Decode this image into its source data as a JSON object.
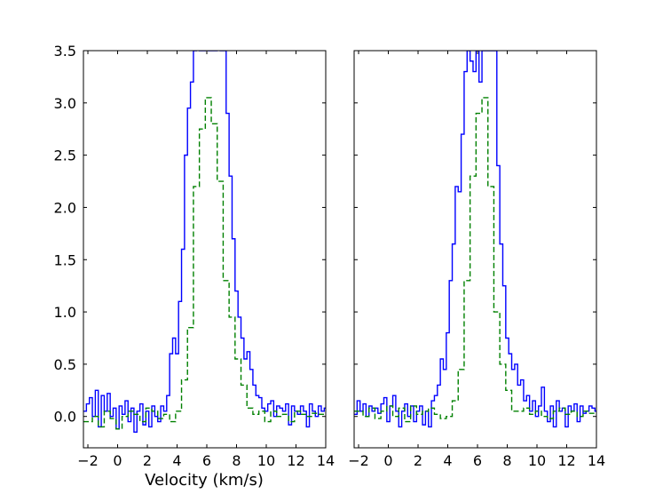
{
  "chart_data": [
    {
      "type": "line",
      "panel": "left",
      "title": "",
      "xlabel": "Velocity (km/s)",
      "ylabel": "",
      "xlim": [
        -2.3,
        14
      ],
      "ylim": [
        -0.3,
        3.5
      ],
      "xticks": [
        -2,
        0,
        2,
        4,
        6,
        8,
        10,
        12,
        14
      ],
      "yticks": [
        0.0,
        0.5,
        1.0,
        1.5,
        2.0,
        2.5,
        3.0,
        3.5
      ],
      "ytick_labels": [
        "0.0",
        "0.5",
        "1.0",
        "1.5",
        "2.0",
        "2.5",
        "3.0",
        "3.5"
      ],
      "drawstyle": "steps",
      "series": [
        {
          "color": "#0000ff",
          "linestyle": "solid",
          "x": [
            -2.3,
            -2.1,
            -1.9,
            -1.7,
            -1.5,
            -1.3,
            -1.1,
            -0.9,
            -0.7,
            -0.5,
            -0.3,
            -0.1,
            0.1,
            0.3,
            0.5,
            0.7,
            0.9,
            1.1,
            1.3,
            1.5,
            1.7,
            1.9,
            2.1,
            2.3,
            2.5,
            2.7,
            2.9,
            3.1,
            3.3,
            3.5,
            3.7,
            3.9,
            4.1,
            4.3,
            4.5,
            4.7,
            4.9,
            5.1,
            5.3,
            5.5,
            5.7,
            5.9,
            6.1,
            6.3,
            6.5,
            6.7,
            6.9,
            7.1,
            7.3,
            7.5,
            7.7,
            7.9,
            8.1,
            8.3,
            8.5,
            8.7,
            8.9,
            9.1,
            9.3,
            9.5,
            9.7,
            9.9,
            10.1,
            10.3,
            10.5,
            10.7,
            10.9,
            11.1,
            11.3,
            11.5,
            11.7,
            11.9,
            12.1,
            12.3,
            12.5,
            12.7,
            12.9,
            13.1,
            13.3,
            13.5,
            13.7,
            13.9
          ],
          "y": [
            0.05,
            0.12,
            0.18,
            0.0,
            0.25,
            -0.1,
            0.2,
            0.05,
            0.22,
            0.0,
            0.08,
            -0.12,
            0.1,
            0.02,
            0.15,
            -0.05,
            0.08,
            -0.15,
            0.05,
            0.12,
            -0.08,
            0.05,
            -0.1,
            0.1,
            0.0,
            -0.05,
            0.1,
            0.05,
            0.2,
            0.6,
            0.75,
            0.6,
            1.1,
            1.6,
            2.5,
            2.95,
            3.2,
            3.5,
            3.6,
            3.5,
            3.5,
            3.6,
            3.5,
            3.5,
            3.5,
            3.6,
            3.5,
            3.5,
            2.9,
            2.3,
            1.7,
            1.2,
            0.95,
            0.75,
            0.55,
            0.62,
            0.45,
            0.3,
            0.2,
            0.18,
            0.08,
            0.05,
            0.12,
            0.15,
            0.0,
            0.1,
            0.08,
            0.05,
            0.12,
            -0.08,
            0.1,
            0.05,
            0.02,
            0.1,
            0.05,
            -0.1,
            0.12,
            0.05,
            0.0,
            0.1,
            0.05,
            0.08
          ]
        },
        {
          "color": "#008000",
          "linestyle": "dashed",
          "x": [
            -2.3,
            -1.7,
            -1.3,
            -0.9,
            -0.5,
            -0.1,
            0.3,
            0.7,
            1.1,
            1.5,
            1.9,
            2.3,
            2.7,
            3.1,
            3.5,
            3.9,
            4.3,
            4.7,
            5.1,
            5.5,
            5.9,
            6.3,
            6.7,
            7.1,
            7.5,
            7.9,
            8.3,
            8.7,
            9.1,
            9.5,
            9.9,
            10.3,
            10.7,
            11.1,
            11.5,
            11.9,
            12.3,
            12.7,
            13.1,
            13.5
          ],
          "y": [
            -0.05,
            0.0,
            -0.1,
            0.05,
            -0.02,
            -0.12,
            0.0,
            0.05,
            0.02,
            -0.05,
            0.08,
            0.05,
            -0.02,
            0.02,
            -0.05,
            0.05,
            0.35,
            0.85,
            2.2,
            2.75,
            3.05,
            2.8,
            2.25,
            1.3,
            0.95,
            0.55,
            0.3,
            0.08,
            0.02,
            0.05,
            -0.05,
            0.05,
            0.0,
            0.02,
            -0.05,
            0.05,
            0.02,
            0.0,
            0.03,
            0.02
          ]
        }
      ]
    },
    {
      "type": "line",
      "panel": "right",
      "title": "",
      "xlabel": "",
      "ylabel": "",
      "xlim": [
        -2.3,
        14
      ],
      "ylim": [
        -0.3,
        3.5
      ],
      "xticks": [
        -2,
        0,
        2,
        4,
        6,
        8,
        10,
        12,
        14
      ],
      "yticks": [
        0.0,
        0.5,
        1.0,
        1.5,
        2.0,
        2.5,
        3.0,
        3.5
      ],
      "drawstyle": "steps",
      "series": [
        {
          "color": "#0000ff",
          "linestyle": "solid",
          "x": [
            -2.3,
            -2.1,
            -1.9,
            -1.7,
            -1.5,
            -1.3,
            -1.1,
            -0.9,
            -0.7,
            -0.5,
            -0.3,
            -0.1,
            0.1,
            0.3,
            0.5,
            0.7,
            0.9,
            1.1,
            1.3,
            1.5,
            1.7,
            1.9,
            2.1,
            2.3,
            2.5,
            2.7,
            2.9,
            3.1,
            3.3,
            3.5,
            3.7,
            3.9,
            4.1,
            4.3,
            4.5,
            4.7,
            4.9,
            5.1,
            5.3,
            5.5,
            5.7,
            5.9,
            6.1,
            6.3,
            6.5,
            6.7,
            6.9,
            7.1,
            7.3,
            7.5,
            7.7,
            7.9,
            8.1,
            8.3,
            8.5,
            8.7,
            8.9,
            9.1,
            9.3,
            9.5,
            9.7,
            9.9,
            10.1,
            10.3,
            10.5,
            10.7,
            10.9,
            11.1,
            11.3,
            11.5,
            11.7,
            11.9,
            12.1,
            12.3,
            12.5,
            12.7,
            12.9,
            13.1,
            13.3,
            13.5,
            13.7,
            13.9
          ],
          "y": [
            0.02,
            0.15,
            0.05,
            0.12,
            0.0,
            0.1,
            0.05,
            0.08,
            0.03,
            0.12,
            0.18,
            -0.05,
            0.1,
            0.2,
            0.05,
            -0.1,
            0.05,
            0.12,
            0.0,
            0.1,
            -0.05,
            0.05,
            0.1,
            -0.08,
            0.05,
            -0.1,
            0.15,
            0.2,
            0.3,
            0.55,
            0.45,
            0.8,
            1.3,
            1.65,
            2.2,
            2.15,
            2.7,
            3.3,
            3.5,
            3.4,
            3.3,
            3.5,
            3.2,
            3.5,
            3.5,
            3.5,
            3.5,
            3.5,
            2.4,
            1.65,
            1.25,
            0.75,
            0.6,
            0.45,
            0.5,
            0.3,
            0.35,
            0.15,
            0.2,
            0.05,
            0.15,
            0.0,
            0.1,
            0.28,
            0.05,
            -0.05,
            0.1,
            -0.1,
            0.15,
            0.05,
            0.08,
            -0.1,
            0.1,
            0.05,
            0.12,
            -0.05,
            0.1,
            0.03,
            0.05,
            0.1,
            0.08,
            0.05
          ]
        },
        {
          "color": "#008000",
          "linestyle": "dashed",
          "x": [
            -2.3,
            -1.7,
            -1.3,
            -0.9,
            -0.5,
            -0.1,
            0.3,
            0.7,
            1.1,
            1.5,
            1.9,
            2.3,
            2.7,
            3.1,
            3.5,
            3.9,
            4.3,
            4.7,
            5.1,
            5.5,
            5.9,
            6.3,
            6.7,
            7.1,
            7.5,
            7.9,
            8.3,
            8.7,
            9.1,
            9.5,
            9.9,
            10.3,
            10.7,
            11.1,
            11.5,
            11.9,
            12.3,
            12.7,
            13.1,
            13.5
          ],
          "y": [
            0.05,
            0.0,
            0.08,
            -0.02,
            0.05,
            0.1,
            0.0,
            0.08,
            -0.05,
            0.1,
            0.02,
            0.05,
            0.08,
            0.02,
            -0.02,
            0.0,
            0.15,
            0.45,
            1.3,
            2.3,
            2.9,
            3.05,
            2.2,
            1.0,
            0.5,
            0.25,
            0.05,
            0.05,
            0.08,
            0.02,
            0.05,
            0.0,
            -0.02,
            0.05,
            0.08,
            0.02,
            0.05,
            0.0,
            0.05,
            0.03
          ]
        }
      ]
    }
  ]
}
